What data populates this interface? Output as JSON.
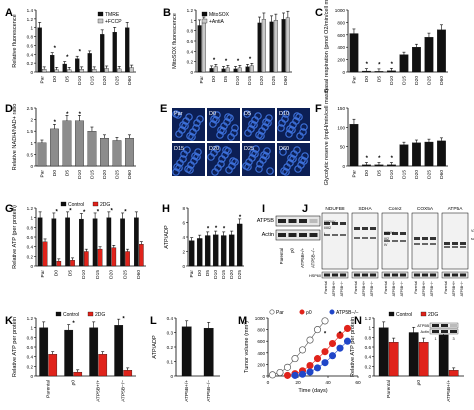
{
  "palette": {
    "black": "#111111",
    "gray": "#8c8c8c",
    "lightgray": "#c8c8c8",
    "red": "#e0231b",
    "white": "#ffffff",
    "blue": "#2046c8",
    "micro_blue": "#3c6fd8"
  },
  "panels": {
    "A": "A",
    "B": "B",
    "C": "C",
    "D": "D",
    "E": "E",
    "F": "F",
    "G": "G",
    "H": "H",
    "I": "I",
    "J": "J",
    "K": "K",
    "L": "L",
    "M": "M",
    "N": "N"
  },
  "micrograph_labels": [
    "Par",
    "D0",
    "D5",
    "D10",
    "D15",
    "D20",
    "D25",
    "D60"
  ],
  "blot_I": {
    "labels": [
      "ATP5B",
      "Actin"
    ],
    "lanes": [
      "Parental",
      "ρ0",
      "ATP5B+/+",
      "ATP5B−/−"
    ]
  },
  "blot_J": {
    "titles": [
      "NDUFB8",
      "SDHA",
      "Core2",
      "COX5A",
      "ATP5A"
    ],
    "complex_labels": [
      "I/III2/IV",
      "I/III2",
      "I",
      "III2/IV",
      "III2",
      "IV",
      "V2",
      "sub-V"
    ],
    "loading": "HSP60",
    "lanes": [
      "Parental",
      "ATP5B+/+",
      "ATP5B−/−"
    ]
  },
  "chart_data": [
    {
      "panel": "A",
      "type": "bar",
      "ylabel": "Relative fluorescence",
      "ylim": [
        0,
        1.4
      ],
      "yticks": [
        0,
        0.2,
        0.4,
        0.6,
        0.8,
        1.0,
        1.2,
        1.4
      ],
      "categories": [
        "Par",
        "D0",
        "D5",
        "D10",
        "D15",
        "D20",
        "D25",
        "D60"
      ],
      "legend": "top-right",
      "series": [
        {
          "name": "TMRE",
          "color": "#111111",
          "values": [
            1.0,
            0.38,
            0.18,
            0.3,
            0.42,
            0.85,
            0.9,
            1.0
          ]
        },
        {
          "name": "+FCCP",
          "color": "#c8c8c8",
          "values": [
            0.06,
            0.05,
            0.05,
            0.06,
            0.06,
            0.08,
            0.07,
            0.1
          ]
        }
      ],
      "stars": [
        1,
        2,
        3
      ]
    },
    {
      "panel": "B",
      "type": "bar",
      "ylabel": "MitoSOX fluorescence",
      "ylim": [
        0,
        1.2
      ],
      "yticks": [
        0,
        0.2,
        0.4,
        0.6,
        0.8,
        1.0,
        1.2
      ],
      "categories": [
        "Par",
        "D0",
        "D5",
        "D10",
        "D15",
        "D20",
        "D25",
        "D60"
      ],
      "legend": "top-left",
      "series": [
        {
          "name": "MitoSOX",
          "color": "#111111",
          "values": [
            0.9,
            0.07,
            0.06,
            0.06,
            0.1,
            0.95,
            0.97,
            1.02
          ]
        },
        {
          "name": "+AntiA",
          "color": "#c8c8c8",
          "values": [
            0.95,
            0.1,
            0.08,
            0.08,
            0.12,
            1.02,
            1.0,
            1.05
          ]
        }
      ],
      "stars": [
        1,
        2,
        3,
        4
      ]
    },
    {
      "panel": "C",
      "type": "bar",
      "ylabel": "Basal respiration (pmol O2/min/cell mass)",
      "ylim": [
        0,
        1000
      ],
      "yticks": [
        0,
        200,
        400,
        600,
        800,
        1000
      ],
      "categories": [
        "Par",
        "D0",
        "D5",
        "D10",
        "D15",
        "D20",
        "D25",
        "D60"
      ],
      "series": [
        {
          "name": "",
          "color": "#111111",
          "values": [
            620,
            15,
            10,
            20,
            280,
            400,
            560,
            680
          ]
        }
      ],
      "stars": [
        1,
        2,
        3
      ]
    },
    {
      "panel": "D",
      "type": "bar",
      "ylabel": "Relative NADH/NAD+ ratio",
      "ylim": [
        0,
        2.5
      ],
      "yticks": [
        0,
        0.5,
        1.0,
        1.5,
        2.0,
        2.5
      ],
      "categories": [
        "Par",
        "D0",
        "D5",
        "D10",
        "D15",
        "D20",
        "D25",
        "D60"
      ],
      "series": [
        {
          "name": "",
          "color": "#8c8c8c",
          "values": [
            1.0,
            1.6,
            1.95,
            1.95,
            1.5,
            1.2,
            1.1,
            1.2
          ]
        }
      ],
      "stars": [
        1,
        2,
        3
      ]
    },
    {
      "panel": "F",
      "type": "bar",
      "ylabel": "Glycolytic reserve (mpH/min/cell mass)",
      "ylim": [
        0,
        150
      ],
      "yticks": [
        0,
        50,
        100,
        150
      ],
      "categories": [
        "Par",
        "D0",
        "D5",
        "D10",
        "D15",
        "D20",
        "D25",
        "D60"
      ],
      "series": [
        {
          "name": "",
          "color": "#111111",
          "values": [
            108,
            3,
            3,
            3,
            55,
            60,
            62,
            65
          ]
        }
      ],
      "stars": [
        1,
        2,
        3
      ]
    },
    {
      "panel": "G",
      "type": "bar",
      "ylabel": "Relative ATP (per protein)",
      "ylim": [
        0,
        1.2
      ],
      "yticks": [
        0,
        0.2,
        0.4,
        0.6,
        0.8,
        1.0,
        1.2
      ],
      "categories": [
        "Par",
        "D0",
        "D5",
        "D10",
        "D15",
        "D20",
        "D25",
        "D60"
      ],
      "legend": "top",
      "series": [
        {
          "name": "Control",
          "color": "#111111",
          "values": [
            1.0,
            0.98,
            1.0,
            0.97,
            0.98,
            1.0,
            0.98,
            1.0
          ]
        },
        {
          "name": "2DG",
          "color": "#e0231b",
          "values": [
            0.5,
            0.1,
            0.12,
            0.3,
            0.35,
            0.38,
            0.3,
            0.45
          ]
        }
      ],
      "stars": [
        1,
        2,
        3,
        4,
        5,
        6
      ]
    },
    {
      "panel": "H",
      "type": "bar",
      "ylabel": "ATP/ADP",
      "ylim": [
        0,
        8
      ],
      "yticks": [
        0,
        2,
        4,
        6,
        8
      ],
      "categories": [
        "Par",
        "D0",
        "D5",
        "D10",
        "D15",
        "D20",
        "D25"
      ],
      "series": [
        {
          "name": "",
          "color": "#111111",
          "values": [
            3.5,
            3.8,
            4.2,
            4.3,
            4.2,
            4.3,
            5.8
          ]
        }
      ],
      "stars": [
        2,
        3,
        4,
        6
      ]
    },
    {
      "panel": "K",
      "type": "bar",
      "ylabel": "Relative ATP per protein",
      "ylim": [
        0,
        1.2
      ],
      "yticks": [
        0,
        0.2,
        0.4,
        0.6,
        0.8,
        1.0,
        1.2
      ],
      "categories": [
        "Parental",
        "ρ0",
        "ATP5B+/+",
        "ATP5B−/−"
      ],
      "legend": "top",
      "series": [
        {
          "name": "Control",
          "color": "#111111",
          "values": [
            1.0,
            0.95,
            1.0,
            1.05
          ]
        },
        {
          "name": "2DG",
          "color": "#e0231b",
          "values": [
            0.45,
            0.08,
            0.45,
            0.12
          ]
        }
      ],
      "stars": [
        1,
        3
      ]
    },
    {
      "panel": "L",
      "type": "bar",
      "ylabel": "ATP/ADP",
      "ylim": [
        0,
        0.4
      ],
      "yticks": [
        0,
        0.1,
        0.2,
        0.3,
        0.4
      ],
      "categories": [
        "ATP5B+/+",
        "ATP5B−/−"
      ],
      "series": [
        {
          "name": "",
          "color": "#111111",
          "values": [
            0.34,
            0.33
          ]
        }
      ],
      "stars": []
    },
    {
      "panel": "M",
      "type": "scatter",
      "ylabel": "Tumor volume (mm³)",
      "xlabel": "Time (days)",
      "ylim": [
        0,
        1000
      ],
      "xlim": [
        0,
        60
      ],
      "yticks": [
        0,
        200,
        400,
        600,
        800,
        1000
      ],
      "xticks": [
        0,
        20,
        40,
        60
      ],
      "legend": "top",
      "series": [
        {
          "name": "Par",
          "color": "#ffffff",
          "stroke": "#555555",
          "x": [
            3,
            8,
            13,
            18,
            23,
            28,
            33,
            38
          ],
          "y": [
            20,
            60,
            150,
            300,
            450,
            620,
            800,
            950
          ]
        },
        {
          "name": "ρ0",
          "color": "#e0231b",
          "stroke": "#e0231b",
          "x": [
            13,
            18,
            23,
            28,
            33,
            38,
            43,
            48,
            53
          ],
          "y": [
            10,
            40,
            90,
            180,
            300,
            420,
            560,
            700,
            820
          ]
        },
        {
          "name": "ATP5B−/−",
          "color": "#2046c8",
          "stroke": "#2046c8",
          "x": [
            18,
            23,
            28,
            33,
            38,
            43,
            48,
            53
          ],
          "y": [
            10,
            30,
            70,
            140,
            230,
            350,
            480,
            600
          ]
        }
      ]
    },
    {
      "panel": "N",
      "type": "bar",
      "ylabel": "Relative ATP per protein",
      "ylim": [
        0,
        1.2
      ],
      "yticks": [
        0,
        0.2,
        0.4,
        0.6,
        0.8,
        1.0,
        1.2
      ],
      "categories": [
        "Parental",
        "ρ0",
        "ATP5B+/+"
      ],
      "legend": "top",
      "inset": {
        "labels": [
          "ATP5B",
          "Actin"
        ],
        "lanes": [
          "1",
          "2",
          "3"
        ]
      },
      "series": [
        {
          "name": "Control",
          "color": "#111111",
          "values": [
            1.0,
            0.9,
            0.85
          ]
        },
        {
          "name": "2DG",
          "color": "#e0231b",
          "values": [
            0.7,
            0.7,
            0.12
          ]
        }
      ],
      "stars": [
        2
      ]
    }
  ]
}
